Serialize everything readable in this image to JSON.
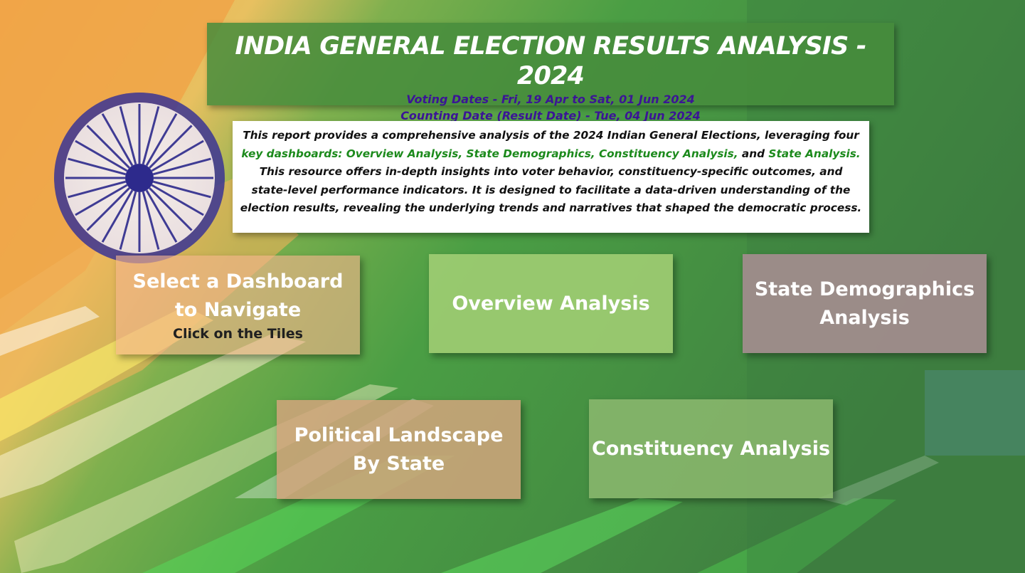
{
  "header": {
    "title": "INDIA GENERAL ELECTION RESULTS ANALYSIS - 2024",
    "voting_dates": "Voting Dates - Fri, 19 Apr to Sat, 01 Jun 2024",
    "counting_date": "Counting Date (Result Date) - Tue, 04 Jun 2024"
  },
  "description": {
    "part1": "This report provides a comprehensive analysis of the 2024 Indian General Elections, leveraging four ",
    "highlight1": "key dashboards: Overview Analysis, State Demographics, Constituency Analysis,",
    "part2": " and ",
    "highlight2": "State Analysis.",
    "part3": " This resource offers in-depth insights into voter behavior, constituency-specific outcomes, and state-level performance indicators. It is designed to facilitate a data-driven understanding of the election results, revealing the underlying trends and narratives that shaped the democratic process."
  },
  "tiles": {
    "select_title": "Select a Dashboard to Navigate",
    "select_hint": "Click on the Tiles",
    "overview": "Overview Analysis",
    "state_demographics": "State Demographics Analysis",
    "political_landscape": "Political Landscape By State",
    "constituency": "Constituency Analysis"
  },
  "colors": {
    "banner_green": "#468c3c",
    "subtitle_purple": "#3b1596",
    "highlight_green": "#1c8a1c",
    "saffron": "#f5a040",
    "chakra_blue": "#2d2a8c"
  }
}
